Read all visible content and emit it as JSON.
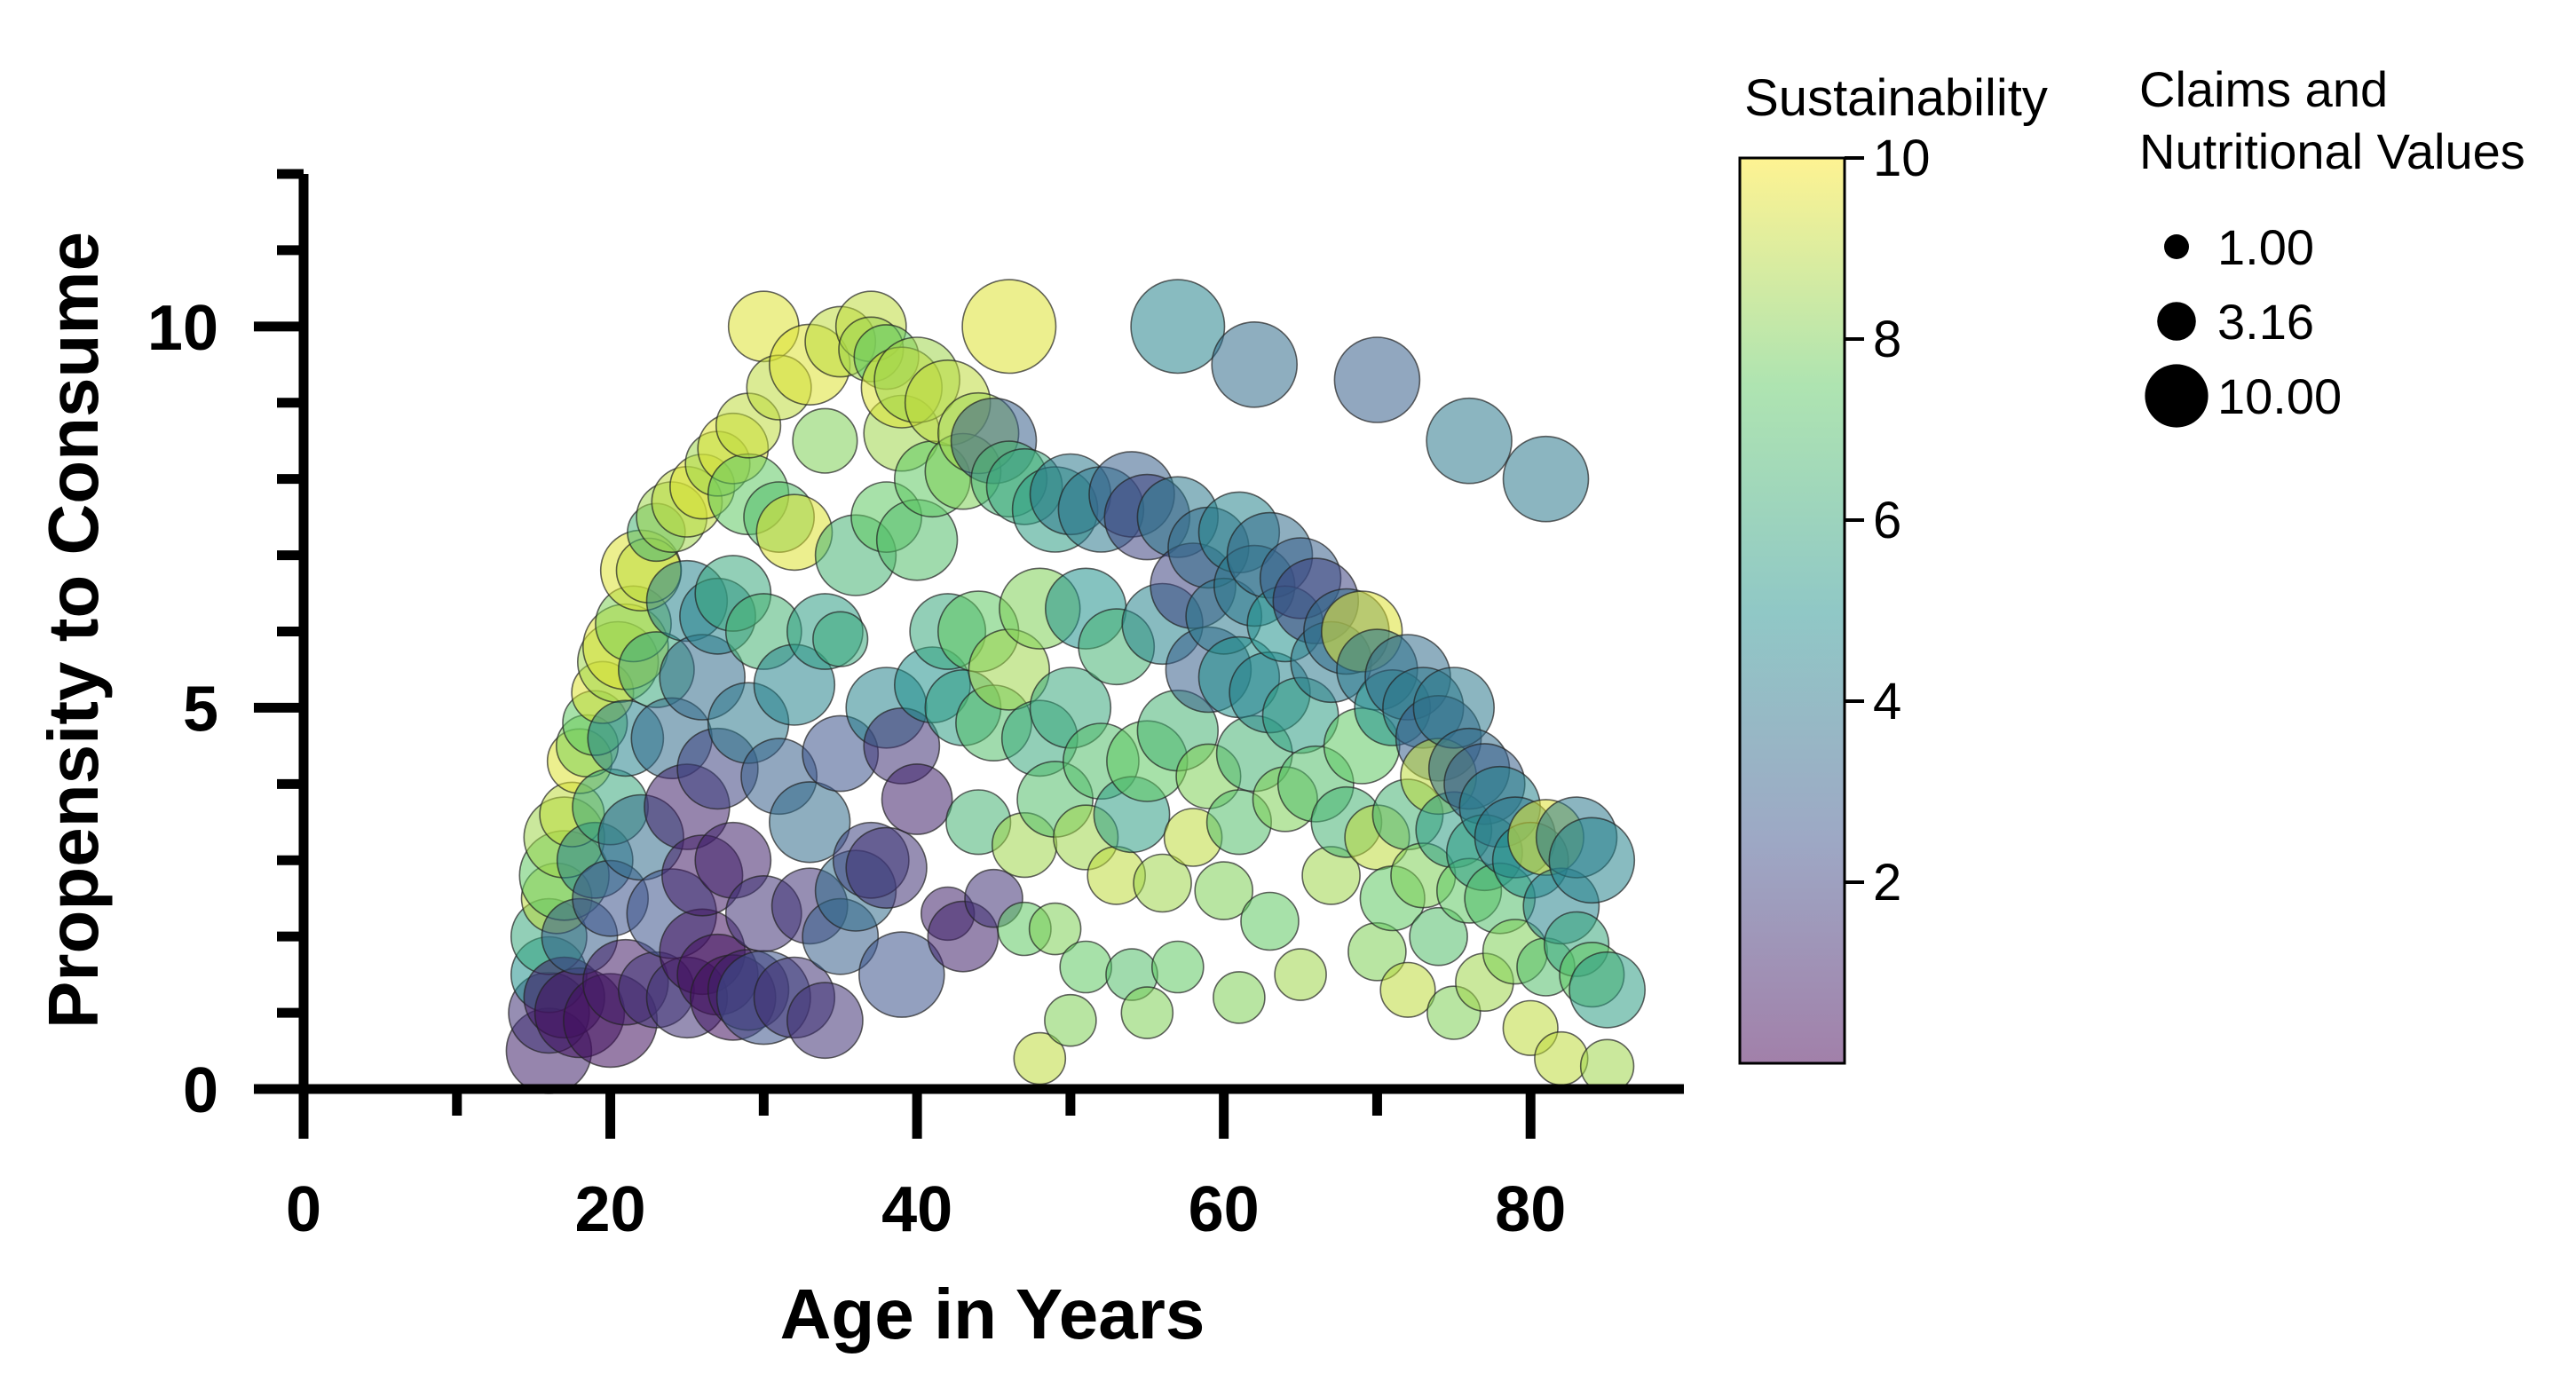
{
  "chart_data": {
    "type": "scatter",
    "title": "",
    "xlabel": "Age in Years",
    "ylabel": "Propensity to Consume",
    "xlim": [
      0,
      90
    ],
    "ylim": [
      0,
      12
    ],
    "x_ticks": [
      0,
      20,
      40,
      60,
      80
    ],
    "y_ticks": [
      0,
      5,
      10
    ],
    "y_minor_tick_step": 1,
    "x_minor_ticks": [
      10,
      30,
      50,
      70
    ],
    "grid": false,
    "colorbar": {
      "title": "Sustainability",
      "range": [
        0,
        10
      ],
      "ticks": [
        2,
        4,
        6,
        8,
        10
      ],
      "colormap": "viridis",
      "alpha": 0.5,
      "stops": [
        "#440154",
        "#3b528b",
        "#21918c",
        "#5ec962",
        "#fde725"
      ]
    },
    "size_legend": {
      "title_lines": [
        "Claims and",
        "Nutritional Values"
      ],
      "entries": [
        {
          "label": "1.00",
          "value": 1.0
        },
        {
          "label": "3.16",
          "value": 3.16
        },
        {
          "label": "10.00",
          "value": 10.0
        }
      ]
    },
    "marker_alpha": 0.55,
    "marker_edge_color": "#222222",
    "points_columns": [
      "age",
      "propensity",
      "sustainability",
      "claims_nutritional_value"
    ],
    "points": [
      [
        16,
        0.5,
        1.0,
        4.0
      ],
      [
        16,
        1.0,
        1.5,
        3.5
      ],
      [
        16,
        1.5,
        5.0,
        3.0
      ],
      [
        16,
        2.0,
        6.0,
        3.0
      ],
      [
        16.5,
        2.5,
        9.0,
        2.5
      ],
      [
        17,
        1.2,
        0.8,
        3.5
      ],
      [
        17,
        2.8,
        7.5,
        4.5
      ],
      [
        17,
        3.3,
        8.5,
        3.5
      ],
      [
        17.5,
        3.6,
        9.0,
        2.0
      ],
      [
        18,
        1.0,
        0.5,
        4.5
      ],
      [
        18,
        2.0,
        3.0,
        3.0
      ],
      [
        18,
        4.3,
        9.5,
        2.0
      ],
      [
        18.5,
        4.5,
        8.0,
        1.8
      ],
      [
        19,
        3.0,
        4.5,
        3.0
      ],
      [
        19,
        4.8,
        7.5,
        2.0
      ],
      [
        19.5,
        5.2,
        9.5,
        1.8
      ],
      [
        20,
        0.9,
        0.5,
        5.0
      ],
      [
        20,
        2.5,
        2.5,
        3.0
      ],
      [
        20,
        3.7,
        6.0,
        3.0
      ],
      [
        20.5,
        5.6,
        8.5,
        3.5
      ],
      [
        21,
        5.8,
        9.5,
        4.0
      ],
      [
        21,
        1.4,
        0.8,
        4.0
      ],
      [
        21,
        4.6,
        4.5,
        3.0
      ],
      [
        21.5,
        6.1,
        8.0,
        3.0
      ],
      [
        22,
        6.8,
        9.5,
        3.5
      ],
      [
        22,
        3.3,
        3.5,
        4.0
      ],
      [
        22.5,
        6.8,
        9.0,
        2.0
      ],
      [
        23,
        1.3,
        1.5,
        3.0
      ],
      [
        23,
        5.5,
        6.0,
        3.0
      ],
      [
        23,
        7.3,
        6.5,
        1.5
      ],
      [
        24,
        2.3,
        2.5,
        4.5
      ],
      [
        24,
        4.6,
        3.5,
        3.5
      ],
      [
        24,
        7.5,
        8.5,
        2.5
      ],
      [
        25,
        1.2,
        1.5,
        3.5
      ],
      [
        25,
        3.7,
        1.0,
        4.0
      ],
      [
        25,
        6.4,
        4.5,
        3.5
      ],
      [
        25,
        7.7,
        9.0,
        2.5
      ],
      [
        26,
        1.8,
        0.5,
        4.0
      ],
      [
        26,
        2.8,
        0.8,
        3.5
      ],
      [
        26,
        5.4,
        3.5,
        4.0
      ],
      [
        26,
        7.9,
        9.5,
        2.0
      ],
      [
        27,
        1.5,
        0.5,
        3.5
      ],
      [
        27,
        4.2,
        2.0,
        3.5
      ],
      [
        27,
        6.2,
        4.5,
        3.0
      ],
      [
        27,
        8.2,
        8.5,
        2.0
      ],
      [
        28,
        1.2,
        0.5,
        4.0
      ],
      [
        28,
        3.0,
        1.0,
        3.0
      ],
      [
        28,
        6.5,
        6.0,
        3.0
      ],
      [
        28,
        8.4,
        9.5,
        2.5
      ],
      [
        29,
        1.3,
        1.0,
        3.5
      ],
      [
        29,
        4.8,
        4.0,
        3.5
      ],
      [
        29,
        7.8,
        7.5,
        3.5
      ],
      [
        29,
        8.7,
        9.0,
        2.0
      ],
      [
        30,
        1.2,
        2.5,
        5.0
      ],
      [
        30,
        2.3,
        1.5,
        3.0
      ],
      [
        30,
        6.0,
        6.5,
        3.0
      ],
      [
        30,
        10.0,
        9.5,
        2.5
      ],
      [
        31,
        4.1,
        3.0,
        3.0
      ],
      [
        31,
        7.5,
        7.0,
        2.5
      ],
      [
        31,
        9.2,
        9.0,
        2.0
      ],
      [
        32,
        1.2,
        1.5,
        3.5
      ],
      [
        32,
        5.3,
        4.5,
        3.5
      ],
      [
        32,
        7.3,
        9.5,
        3.0
      ],
      [
        33,
        2.4,
        1.5,
        3.0
      ],
      [
        33,
        3.5,
        3.5,
        3.5
      ],
      [
        33,
        9.5,
        9.5,
        3.5
      ],
      [
        34,
        0.9,
        1.5,
        3.0
      ],
      [
        34,
        6.0,
        5.5,
        3.0
      ],
      [
        34,
        8.5,
        8.0,
        2.0
      ],
      [
        35,
        2.0,
        3.0,
        3.0
      ],
      [
        35,
        4.4,
        2.5,
        3.0
      ],
      [
        35,
        5.9,
        6.0,
        1.3
      ],
      [
        35,
        9.8,
        9.0,
        2.5
      ],
      [
        36,
        2.6,
        3.5,
        3.5
      ],
      [
        36,
        7.0,
        6.5,
        3.5
      ],
      [
        37,
        3.0,
        2.0,
        3.0
      ],
      [
        37,
        10.0,
        9.0,
        2.5
      ],
      [
        37,
        9.7,
        8.5,
        2.0
      ],
      [
        38,
        2.9,
        1.5,
        3.5
      ],
      [
        38,
        5.0,
        4.5,
        3.5
      ],
      [
        38,
        7.5,
        7.5,
        2.5
      ],
      [
        38,
        9.6,
        7.5,
        2.0
      ],
      [
        39,
        1.5,
        2.5,
        4.0
      ],
      [
        39,
        4.5,
        1.5,
        3.0
      ],
      [
        39,
        8.6,
        8.5,
        3.0
      ],
      [
        39,
        9.2,
        9.5,
        3.5
      ],
      [
        40,
        3.8,
        1.0,
        2.5
      ],
      [
        40,
        7.2,
        7.0,
        3.5
      ],
      [
        40,
        9.3,
        8.5,
        4.0
      ],
      [
        41,
        5.3,
        5.0,
        3.0
      ],
      [
        41,
        8.0,
        7.5,
        3.0
      ],
      [
        42,
        6.0,
        6.0,
        3.0
      ],
      [
        42,
        9.0,
        9.0,
        4.0
      ],
      [
        42,
        2.3,
        1.0,
        1.2
      ],
      [
        43,
        2.0,
        1.0,
        2.5
      ],
      [
        43,
        5.0,
        5.5,
        3.0
      ],
      [
        43,
        8.1,
        8.0,
        3.0
      ],
      [
        44,
        3.5,
        6.5,
        2.0
      ],
      [
        44,
        6.0,
        7.5,
        3.5
      ],
      [
        44,
        8.6,
        8.5,
        3.5
      ],
      [
        45,
        8.5,
        3.0,
        4.0
      ],
      [
        45,
        4.8,
        7.0,
        3.0
      ],
      [
        45,
        2.5,
        1.5,
        1.5
      ],
      [
        46,
        10.0,
        9.5,
        5.0
      ],
      [
        46,
        8.0,
        6.5,
        3.0
      ],
      [
        46,
        5.5,
        8.5,
        3.5
      ],
      [
        47,
        2.1,
        7.5,
        1.2
      ],
      [
        47,
        3.2,
        8.5,
        2.0
      ],
      [
        47,
        7.9,
        6.0,
        3.0
      ],
      [
        48,
        6.3,
        8.0,
        3.5
      ],
      [
        48,
        4.6,
        6.0,
        3.0
      ],
      [
        48,
        0.4,
        9.0,
        1.1
      ],
      [
        49,
        2.1,
        8.0,
        1.1
      ],
      [
        49,
        3.8,
        7.0,
        3.0
      ],
      [
        49,
        7.6,
        5.5,
        4.0
      ],
      [
        50,
        5.0,
        6.0,
        3.5
      ],
      [
        50,
        0.9,
        8.0,
        1.1
      ],
      [
        50,
        7.8,
        4.0,
        3.5
      ],
      [
        51,
        1.6,
        7.5,
        1.1
      ],
      [
        51,
        3.3,
        8.5,
        2.0
      ],
      [
        51,
        6.3,
        5.0,
        3.5
      ],
      [
        52,
        4.3,
        7.0,
        3.0
      ],
      [
        52,
        7.6,
        4.0,
        4.0
      ],
      [
        53,
        2.8,
        9.0,
        1.5
      ],
      [
        53,
        5.8,
        6.5,
        3.0
      ],
      [
        54,
        7.8,
        3.0,
        4.0
      ],
      [
        54,
        1.5,
        7.0,
        1.1
      ],
      [
        54,
        3.6,
        5.5,
        3.0
      ],
      [
        55,
        7.5,
        2.0,
        4.0
      ],
      [
        55,
        4.3,
        7.5,
        3.5
      ],
      [
        55,
        1.0,
        8.0,
        1.1
      ],
      [
        56,
        6.1,
        4.5,
        3.5
      ],
      [
        56,
        2.7,
        8.5,
        1.5
      ],
      [
        57,
        10.0,
        4.5,
        5.0
      ],
      [
        57,
        7.5,
        4.0,
        3.5
      ],
      [
        57,
        4.7,
        6.5,
        3.5
      ],
      [
        57,
        1.6,
        7.5,
        1.1
      ],
      [
        58,
        6.6,
        2.0,
        4.0
      ],
      [
        58,
        3.3,
        9.0,
        1.5
      ],
      [
        59,
        7.1,
        3.5,
        3.5
      ],
      [
        59,
        5.5,
        3.0,
        4.0
      ],
      [
        59,
        4.1,
        8.0,
        2.0
      ],
      [
        60,
        6.2,
        4.0,
        3.0
      ],
      [
        60,
        2.6,
        8.0,
        1.5
      ],
      [
        61,
        7.3,
        4.5,
        3.5
      ],
      [
        61,
        5.4,
        5.0,
        3.5
      ],
      [
        61,
        3.5,
        7.0,
        2.0
      ],
      [
        61,
        1.2,
        8.0,
        1.1
      ],
      [
        62,
        9.5,
        3.5,
        4.0
      ],
      [
        62,
        6.6,
        4.0,
        3.5
      ],
      [
        62,
        4.4,
        6.5,
        3.0
      ],
      [
        63,
        7.0,
        3.5,
        4.0
      ],
      [
        63,
        5.2,
        4.5,
        3.5
      ],
      [
        63,
        2.2,
        7.5,
        1.5
      ],
      [
        64,
        6.1,
        5.0,
        3.0
      ],
      [
        64,
        3.8,
        8.0,
        2.0
      ],
      [
        65,
        6.7,
        3.0,
        3.5
      ],
      [
        65,
        4.9,
        5.5,
        3.0
      ],
      [
        65,
        1.5,
        8.5,
        1.1
      ],
      [
        66,
        6.4,
        2.0,
        4.0
      ],
      [
        66,
        4.0,
        7.0,
        3.0
      ],
      [
        67,
        5.6,
        4.0,
        3.5
      ],
      [
        67,
        2.8,
        8.5,
        1.5
      ],
      [
        68,
        6.0,
        3.5,
        4.0
      ],
      [
        68,
        3.5,
        6.5,
        2.5
      ],
      [
        69,
        6.0,
        9.5,
        3.5
      ],
      [
        69,
        4.5,
        7.5,
        3.0
      ],
      [
        70,
        9.3,
        3.0,
        4.0
      ],
      [
        70,
        5.5,
        4.0,
        3.5
      ],
      [
        70,
        3.3,
        9.0,
        2.0
      ],
      [
        70,
        1.8,
        8.0,
        1.5
      ],
      [
        71,
        5.0,
        5.0,
        3.0
      ],
      [
        71,
        2.5,
        7.5,
        2.0
      ],
      [
        72,
        5.4,
        3.5,
        4.0
      ],
      [
        72,
        3.6,
        6.5,
        2.5
      ],
      [
        72,
        1.3,
        9.0,
        1.3
      ],
      [
        73,
        5.0,
        4.0,
        3.5
      ],
      [
        73,
        2.8,
        8.0,
        2.0
      ],
      [
        74,
        4.6,
        3.0,
        4.0
      ],
      [
        74,
        4.1,
        9.0,
        3.0
      ],
      [
        74,
        2.0,
        7.0,
        1.5
      ],
      [
        75,
        5.0,
        4.0,
        3.5
      ],
      [
        75,
        3.4,
        5.5,
        3.0
      ],
      [
        75,
        1.0,
        8.0,
        1.2
      ],
      [
        76,
        8.5,
        4.0,
        4.0
      ],
      [
        76,
        4.2,
        3.5,
        3.5
      ],
      [
        76,
        2.6,
        7.5,
        2.0
      ],
      [
        77,
        4.0,
        3.0,
        3.5
      ],
      [
        77,
        3.1,
        5.5,
        3.0
      ],
      [
        77,
        1.4,
        8.5,
        1.5
      ],
      [
        78,
        3.7,
        4.5,
        3.5
      ],
      [
        78,
        2.5,
        7.0,
        2.5
      ],
      [
        79,
        3.3,
        4.0,
        3.5
      ],
      [
        79,
        1.8,
        8.0,
        2.0
      ],
      [
        80,
        3.0,
        5.0,
        3.0
      ],
      [
        80,
        0.8,
        9.0,
        1.3
      ],
      [
        81,
        8.0,
        4.0,
        4.0
      ],
      [
        81,
        3.3,
        9.5,
        3.0
      ],
      [
        81,
        1.6,
        7.0,
        1.5
      ],
      [
        82,
        2.4,
        4.5,
        3.0
      ],
      [
        82,
        0.4,
        9.0,
        1.2
      ],
      [
        83,
        3.3,
        4.0,
        3.5
      ],
      [
        83,
        1.9,
        6.0,
        2.0
      ],
      [
        84,
        3.0,
        4.5,
        4.0
      ],
      [
        84,
        1.5,
        7.5,
        2.0
      ],
      [
        85,
        1.3,
        5.5,
        3.0
      ],
      [
        85,
        0.3,
        8.5,
        1.2
      ]
    ]
  }
}
